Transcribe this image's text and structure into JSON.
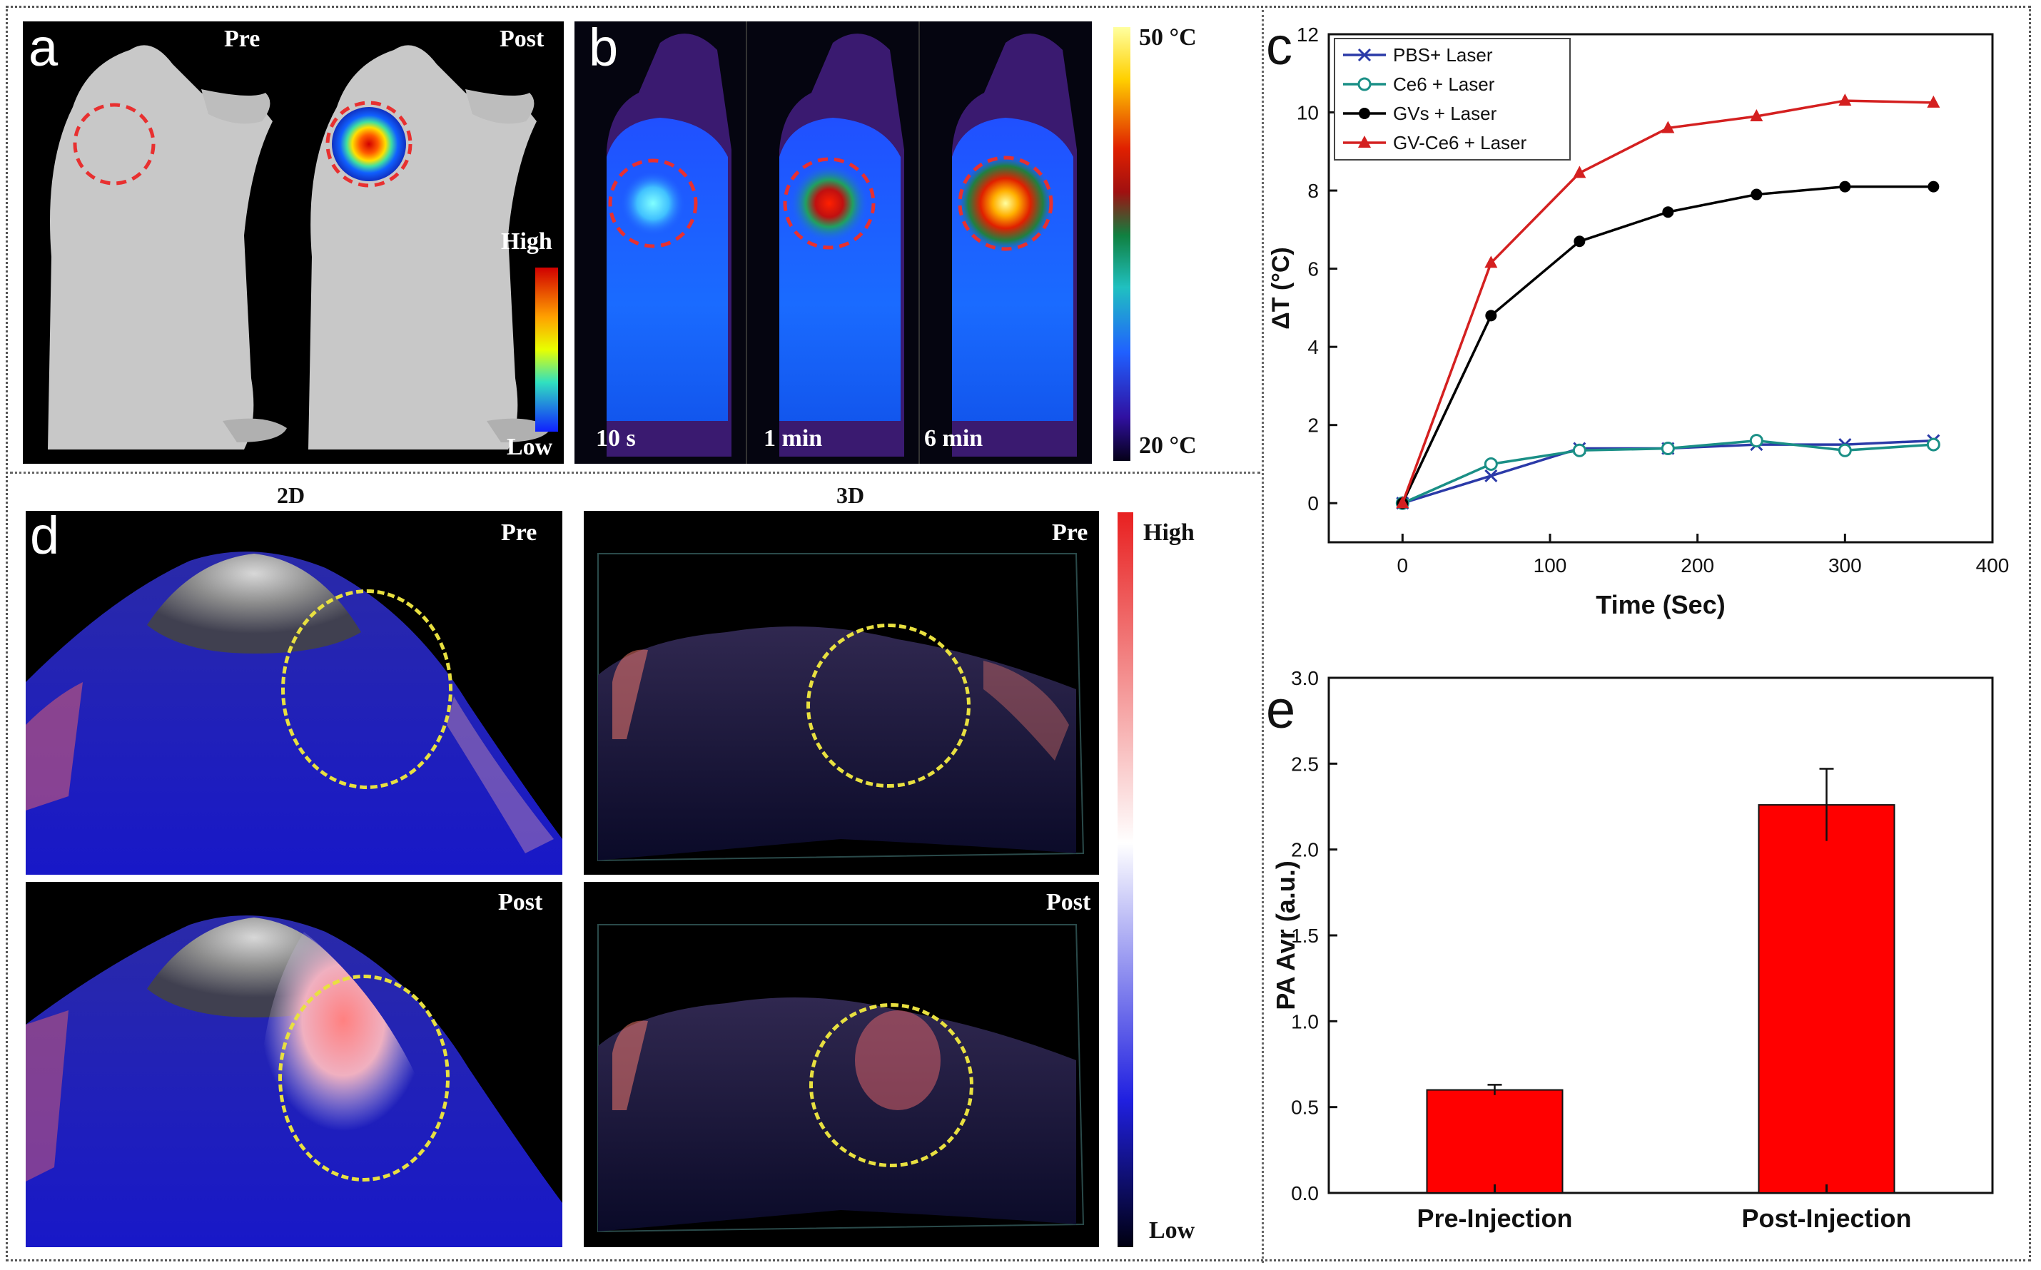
{
  "panel_a": {
    "label": "a",
    "pre": "Pre",
    "post": "Post",
    "scale_high": "High",
    "scale_low": "Low"
  },
  "panel_b": {
    "label": "b",
    "times": [
      "10 s",
      "1 min",
      "6 min"
    ],
    "scale_max": "50 °C",
    "scale_min": "20 °C"
  },
  "panel_d": {
    "label": "d",
    "header_2d": "2D",
    "header_3d": "3D",
    "pre": "Pre",
    "post": "Post",
    "scale_high": "High",
    "scale_low": "Low"
  },
  "colors": {
    "pbs": "#2b3aa8",
    "ce6": "#1a8f86",
    "gvs": "#000000",
    "gvce6": "#d42020",
    "bar": "#ff0000",
    "ellipse_red": "#e83030",
    "ellipse_yellow": "#e8e040"
  },
  "chart_data": [
    {
      "panel": "c",
      "label": "c",
      "type": "line",
      "xlabel": "Time (Sec)",
      "ylabel": "ΔT (°C)",
      "xlim": [
        -50,
        400
      ],
      "ylim": [
        -1,
        12
      ],
      "xticks": [
        0,
        100,
        200,
        300,
        400
      ],
      "yticks": [
        0,
        2,
        4,
        6,
        8,
        10,
        12
      ],
      "x": [
        0,
        60,
        120,
        180,
        240,
        300,
        360
      ],
      "legend_position": "top-left",
      "series": [
        {
          "name": "PBS+ Laser",
          "marker": "x",
          "values": [
            0,
            0.7,
            1.4,
            1.4,
            1.5,
            1.5,
            1.6
          ]
        },
        {
          "name": "Ce6 + Laser",
          "marker": "open-circle",
          "values": [
            0,
            1.0,
            1.35,
            1.4,
            1.6,
            1.35,
            1.5
          ]
        },
        {
          "name": "GVs + Laser",
          "marker": "filled-circle",
          "values": [
            0,
            4.8,
            6.7,
            7.45,
            7.9,
            8.1,
            8.1
          ]
        },
        {
          "name": "GV-Ce6 + Laser",
          "marker": "triangle",
          "values": [
            0,
            6.15,
            8.45,
            9.6,
            9.9,
            10.3,
            10.25
          ]
        }
      ]
    },
    {
      "panel": "e",
      "label": "e",
      "type": "bar",
      "ylabel": "PA Avr (a.u.)",
      "ylim": [
        0,
        3.0
      ],
      "yticks": [
        0.0,
        0.5,
        1.0,
        1.5,
        2.0,
        2.5,
        3.0
      ],
      "categories": [
        "Pre-Injection",
        "Post-Injection"
      ],
      "values": [
        0.6,
        2.26
      ],
      "errors": [
        0.03,
        0.21
      ]
    }
  ]
}
